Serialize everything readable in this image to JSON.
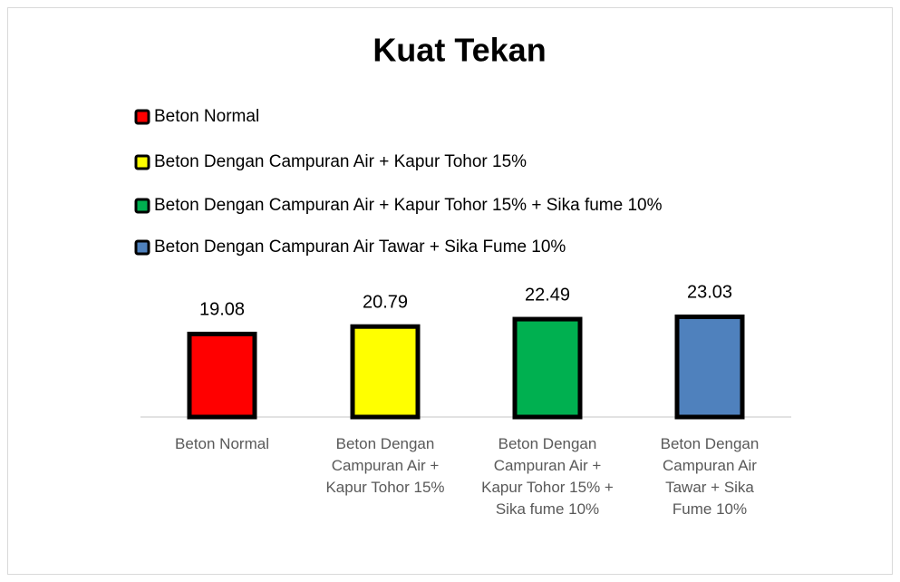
{
  "chart_data": {
    "type": "bar",
    "title": "Kuat Tekan",
    "categories": [
      "Beton Normal",
      "Beton Dengan Campuran Air + Kapur Tohor 15%",
      "Beton Dengan Campuran Air + Kapur Tohor 15% + Sika fume 10%",
      "Beton Dengan Campuran Air Tawar + Sika Fume 10%"
    ],
    "values": [
      19.08,
      20.79,
      22.49,
      23.03
    ],
    "colors": [
      "#ff0000",
      "#ffff00",
      "#00b050",
      "#4f81bd"
    ],
    "ylim": [
      0,
      25
    ],
    "grid": false,
    "legend": "top"
  }
}
